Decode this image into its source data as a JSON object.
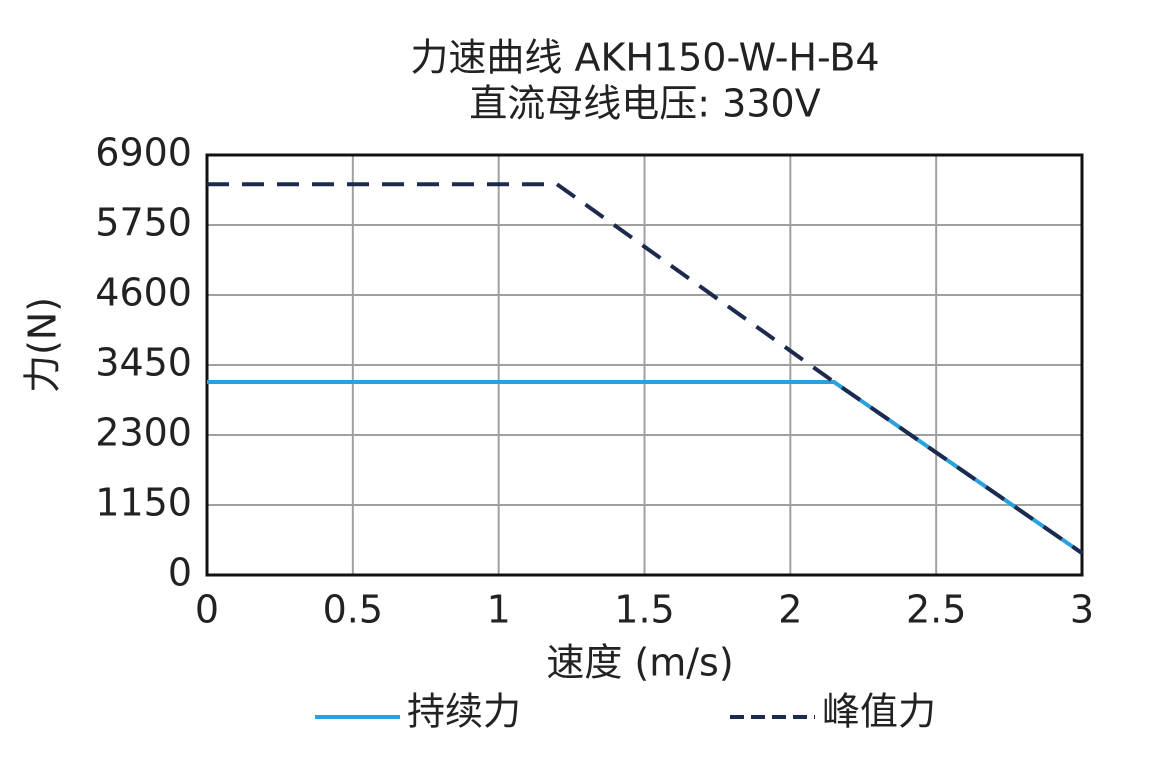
{
  "chart_data": {
    "type": "line",
    "title": "力速曲线 AKH150-W-H-B4",
    "subtitle": "直流母线电压: 330V",
    "x_label": "速度 (m/s)",
    "y_label": "力(N)",
    "xlim": [
      0,
      3
    ],
    "xticks": [
      0,
      0.5,
      1,
      1.5,
      2,
      2.5,
      3
    ],
    "ylim": [
      0,
      6900
    ],
    "yticks": [
      0,
      1150,
      2300,
      3450,
      4600,
      5750,
      6900
    ],
    "grid": true,
    "legend": "bottom",
    "series": [
      {
        "name": "持续力",
        "color": "#2aa0dc",
        "dash": false,
        "x": [
          0,
          2.15,
          3
        ],
        "values": [
          3170,
          3170,
          360
        ]
      },
      {
        "name": "峰值力",
        "color": "#1b2a4e",
        "dash": true,
        "x": [
          0,
          1.2,
          2.15,
          3
        ],
        "values": [
          6420,
          6420,
          3170,
          360
        ]
      }
    ]
  }
}
